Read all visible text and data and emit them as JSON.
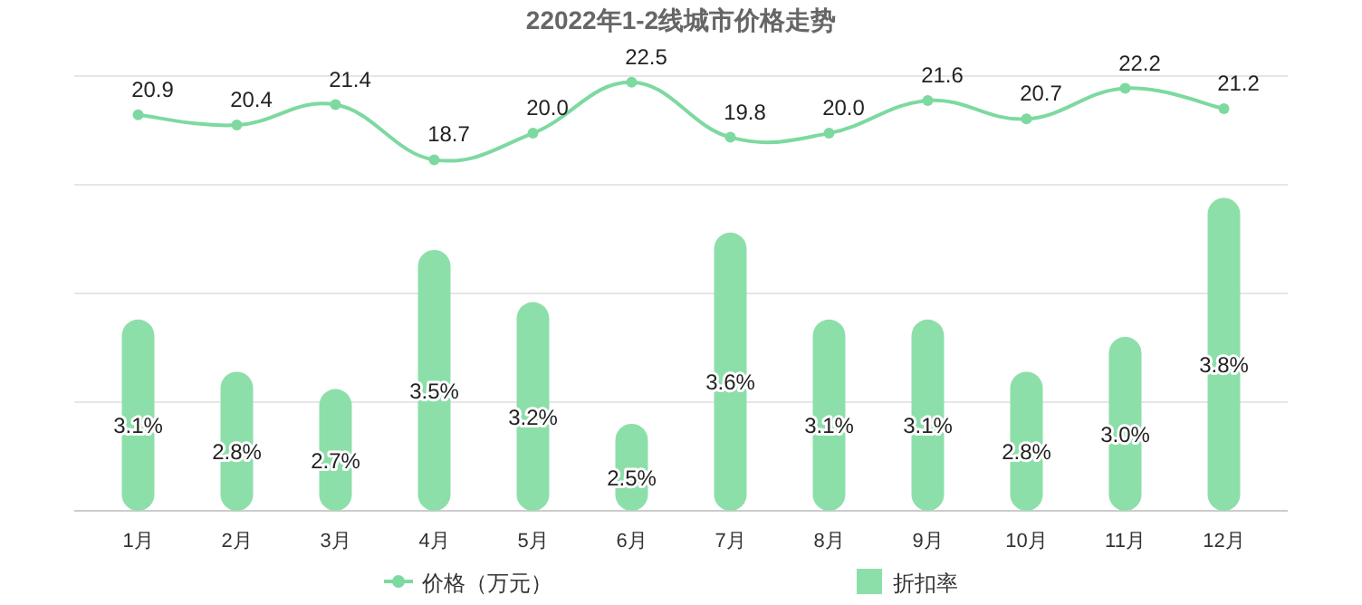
{
  "chart_data": {
    "type": "bar",
    "title": "22022年1-2线城市价格走势",
    "categories": [
      "1月",
      "2月",
      "3月",
      "4月",
      "5月",
      "6月",
      "7月",
      "8月",
      "9月",
      "10月",
      "11月",
      "12月"
    ],
    "series": [
      {
        "name": "价格（万元）",
        "type": "line",
        "axis": "y2",
        "color": "#7dd9a0",
        "marker": "circle",
        "values": [
          20.9,
          20.4,
          21.4,
          18.7,
          20.0,
          22.5,
          19.8,
          20.0,
          21.6,
          20.7,
          22.2,
          21.2
        ],
        "value_labels": [
          "20.9",
          "20.4",
          "21.4",
          "18.7",
          "20.0",
          "22.5",
          "19.8",
          "20.0",
          "21.6",
          "20.7",
          "22.2",
          "21.2"
        ]
      },
      {
        "name": "折扣率",
        "type": "bar",
        "color": "#8ddfaa",
        "values": [
          3.1,
          2.8,
          2.7,
          3.5,
          3.2,
          2.5,
          3.6,
          3.1,
          3.1,
          2.8,
          3.0,
          3.8
        ],
        "value_labels": [
          "3.1%",
          "2.8%",
          "2.7%",
          "3.5%",
          "3.2%",
          "2.5%",
          "3.6%",
          "3.1%",
          "3.1%",
          "2.8%",
          "3.0%",
          "3.8%"
        ]
      }
    ],
    "ylim": [
      2,
      4.5
    ],
    "yticks": [
      {
        "value": 2,
        "label": null
      },
      {
        "value": 2.625,
        "label": null
      },
      {
        "value": 3.25,
        "label": null
      },
      {
        "value": 3.875,
        "label": null
      },
      {
        "value": 4.5,
        "label": null
      }
    ],
    "y2lim": [
      1.5,
      22.8
    ],
    "grid": "y",
    "tick_labels": "x",
    "legend": "bottom"
  }
}
